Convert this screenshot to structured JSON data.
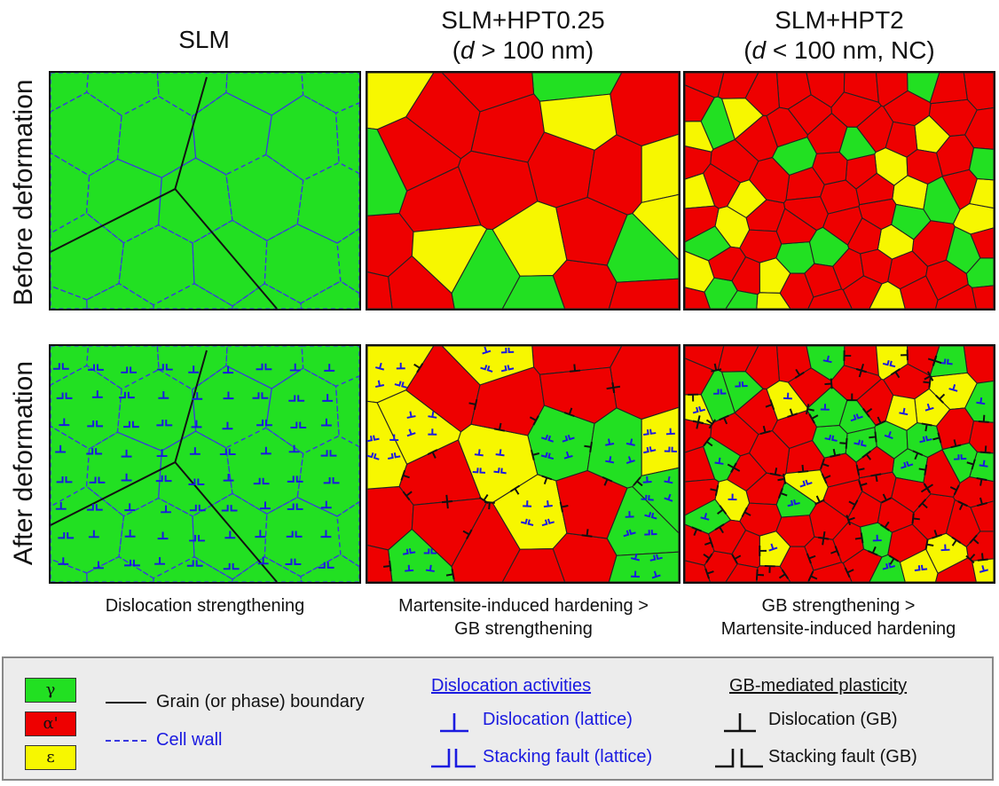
{
  "columns": [
    {
      "title": "SLM",
      "subtitle": ""
    },
    {
      "title": "SLM+HPT0.25",
      "subtitle_pre": "(",
      "subtitle_italic": "d",
      "subtitle_post": " > 100 nm)"
    },
    {
      "title": "SLM+HPT2",
      "subtitle_pre": "(",
      "subtitle_italic": "d",
      "subtitle_post": " < 100 nm, NC)"
    }
  ],
  "rows": [
    {
      "label": "Before deformation"
    },
    {
      "label": "After deformation"
    }
  ],
  "captions": [
    {
      "line1": "Dislocation strengthening",
      "line2": ""
    },
    {
      "line1": "Martensite-induced hardening >",
      "line2": "GB strengthening"
    },
    {
      "line1": "GB strengthening >",
      "line2": "Martensite-induced hardening"
    }
  ],
  "colors": {
    "gamma": "#22e022",
    "alpha": "#ee0000",
    "epsilon": "#f7f700",
    "dislocation_lattice": "#1a1ae0",
    "dislocation_gb": "#111111",
    "cell_wall": "#3838e0"
  },
  "legend": {
    "phases": [
      {
        "symbol": "γ",
        "color": "#22e022"
      },
      {
        "symbol": "α'",
        "color": "#ee0000"
      },
      {
        "symbol": "ε",
        "color": "#f7f700"
      }
    ],
    "grain_boundary": "Grain (or phase) boundary",
    "cell_wall": "Cell wall",
    "dislocation_activities_title": "Dislocation activities",
    "dislocation_lattice": "Dislocation (lattice)",
    "stacking_fault_lattice": "Stacking fault (lattice)",
    "gb_plasticity_title": "GB-mediated plasticity",
    "dislocation_gb": "Dislocation (GB)",
    "stacking_fault_gb": "Stacking fault (GB)"
  }
}
